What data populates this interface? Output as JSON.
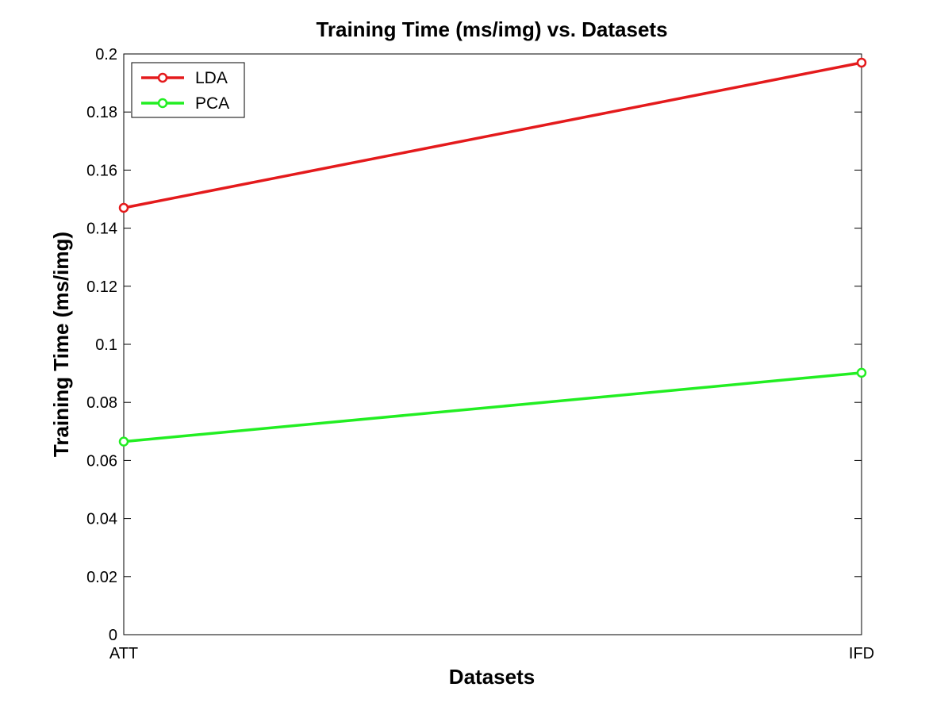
{
  "chart_data": {
    "type": "line",
    "title": "Training Time (ms/img) vs. Datasets",
    "xlabel": "Datasets",
    "ylabel": "Training Time (ms/img)",
    "categories": [
      "ATT",
      "IFD"
    ],
    "ylim": [
      0,
      0.2
    ],
    "yticks": [
      "0",
      "0.02",
      "0.04",
      "0.06",
      "0.08",
      "0.1",
      "0.12",
      "0.14",
      "0.16",
      "0.18",
      "0.2"
    ],
    "yticks_values": [
      0,
      0.02,
      0.04,
      0.06,
      0.08,
      0.1,
      0.12,
      0.14,
      0.16,
      0.18,
      0.2
    ],
    "grid": false,
    "legend_position": "top-left",
    "series": [
      {
        "name": "LDA",
        "color": "#e41a1c",
        "values": [
          0.147,
          0.197
        ]
      },
      {
        "name": "PCA",
        "color": "#22ee22",
        "values": [
          0.0665,
          0.0902
        ]
      }
    ]
  }
}
